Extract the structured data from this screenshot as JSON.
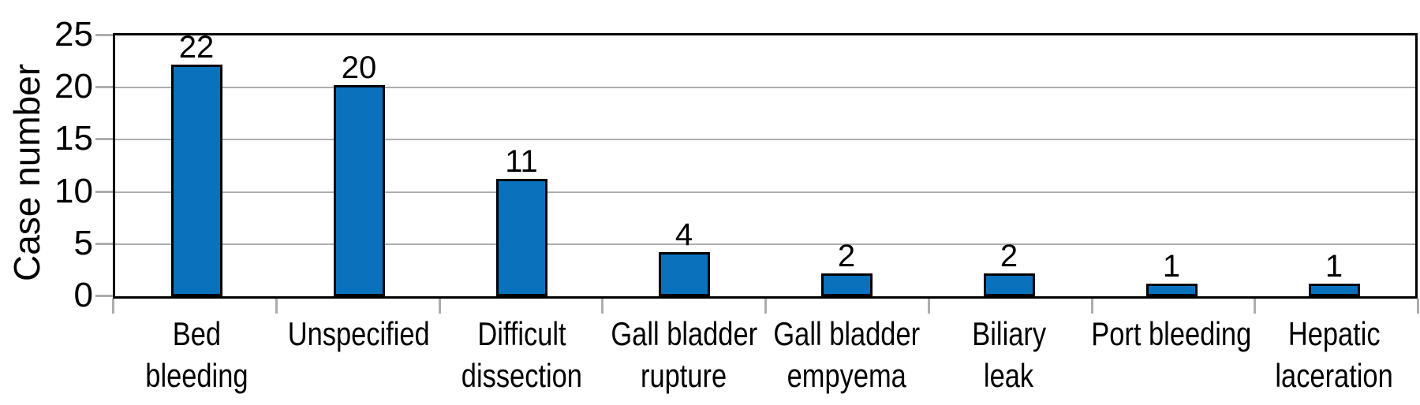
{
  "chart_data": {
    "type": "bar",
    "title": "",
    "xlabel": "",
    "ylabel": "Case number",
    "ylim": [
      0,
      25
    ],
    "yticks": [
      0,
      5,
      10,
      15,
      20,
      25
    ],
    "gridlines_at": [
      5,
      10,
      15,
      20
    ],
    "grid": "horizontal",
    "legend_position": "none",
    "categories": [
      "Bed bleeding",
      "Unspecified",
      "Difficult dissection",
      "Gall bladder rupture",
      "Gall bladder empyema",
      "Biliary leak",
      "Port bleeding",
      "Hepatic laceration"
    ],
    "category_label_lines": [
      [
        "Bed",
        "bleeding"
      ],
      [
        "Unspecified"
      ],
      [
        "Difficult",
        "dissection"
      ],
      [
        "Gall bladder",
        "rupture"
      ],
      [
        "Gall bladder",
        "empyema"
      ],
      [
        "Biliary",
        "leak"
      ],
      [
        "Port bleeding"
      ],
      [
        "Hepatic",
        "laceration"
      ]
    ],
    "values": [
      22,
      20,
      11,
      4,
      2,
      2,
      1,
      1
    ],
    "bar_value_labels": [
      "22",
      "20",
      "11",
      "4",
      "2",
      "2",
      "1",
      "1"
    ],
    "colors": {
      "bar_fill": "#0a72bc",
      "bar_border": "#000000",
      "gridline": "#adadad",
      "tick": "#adadad",
      "axis_border": "#000000",
      "text": "#000000",
      "background": "#ffffff"
    }
  }
}
